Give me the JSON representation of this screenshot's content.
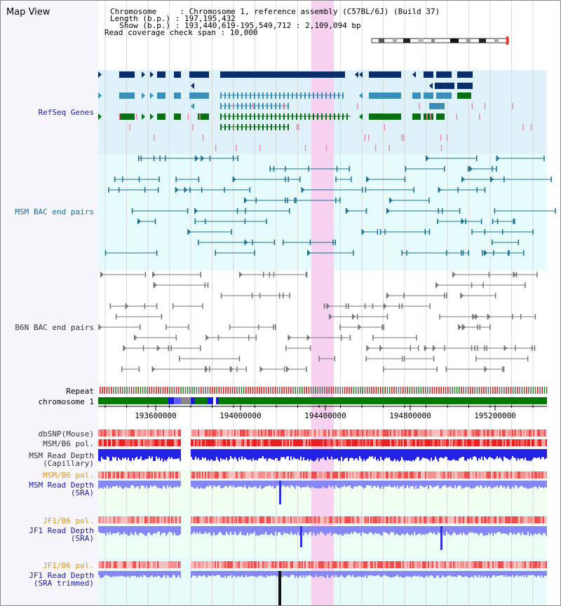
{
  "title": "Map View",
  "header": {
    "chromosome_line": "Chromosome     : Chromosome 1, reference assembly (C57BL/6J) (Build 37)",
    "length_line": "Length (b.p.) : 197,195,432",
    "show_line": "  Show (b.p.) : 193,440,619-195,549,712 : 2,109,094 bp",
    "span_line": "Read coverage check span : 10,000"
  },
  "tracks": {
    "refseq": "RefSeq Genes",
    "msm_bac": "MSM BAC end pairs",
    "b6n_bac": "B6N BAC end pairs",
    "repeat": "Repeat",
    "chromosome": "chromosome 1",
    "dbsnp": "dbSNP(Mouse)",
    "msm_pol": "MSM/B6 pol.",
    "msm_depth_cap": "MSM Read Depth\n(Capillary)",
    "msm_pol2": "MSM/B6 pol.",
    "msm_depth_sra": "MSM Read Depth\n(SRA)",
    "jf1_pol": "JF1/B6 pol.",
    "jf1_depth_sra": "JF1 Read Depth\n(SRA)",
    "jf1_pol2": "JF1/B6 pol.",
    "jf1_depth_trim": "JF1 Read Depth\n(SRA trimmed)"
  },
  "axis_ticks": [
    "193600000",
    "194000000",
    "194400000",
    "194800000",
    "195200000"
  ],
  "colors": {
    "refseq_dark": "#0a2d6b",
    "refseq_mid": "#3b8fb8",
    "refseq_green": "#0a6e14",
    "bac_msm": "#1a6f8f",
    "bac_b6n": "#777777",
    "highlight": "#f6d2f0",
    "chrom_green": "#007a00",
    "depth_blue": "#2323e8",
    "depth_light": "#8686f5"
  }
}
